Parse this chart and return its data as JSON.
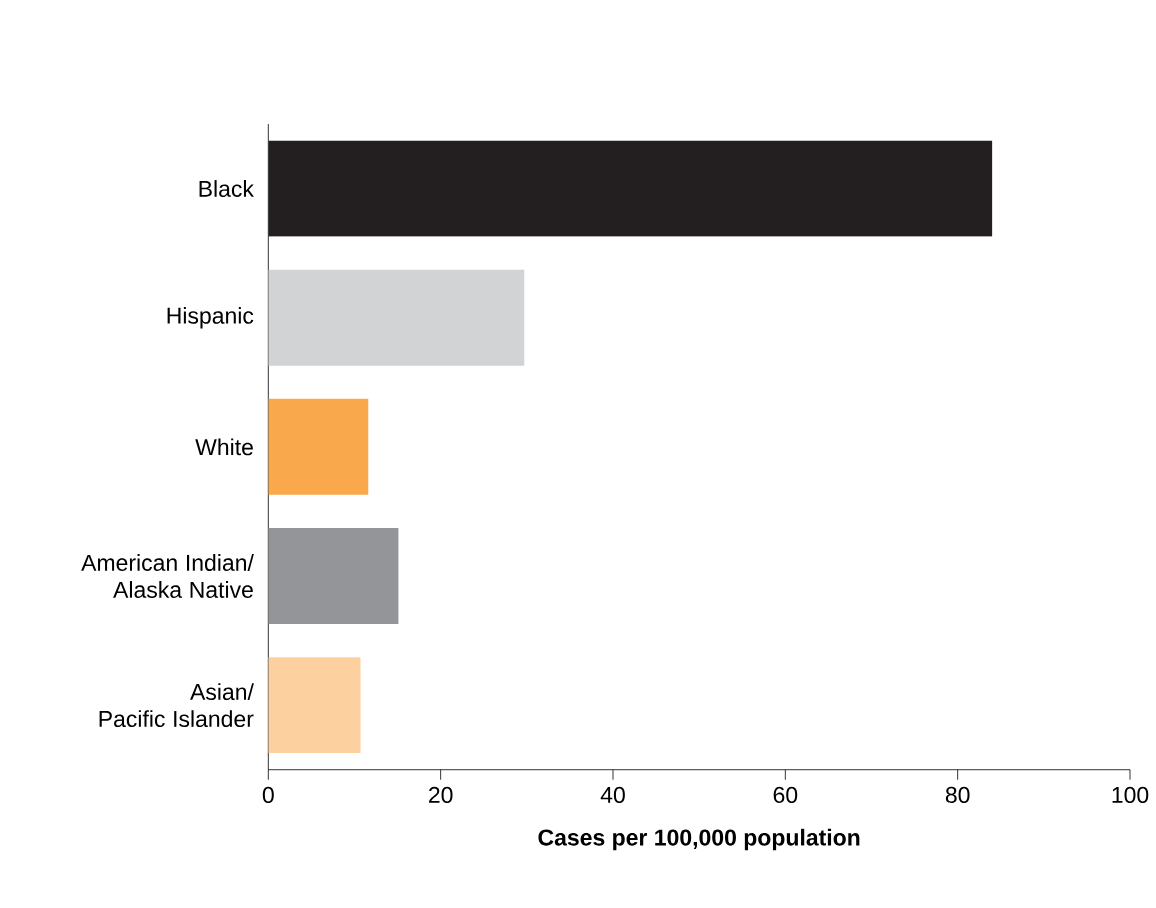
{
  "chart_data": {
    "type": "bar",
    "orientation": "horizontal",
    "xlabel": "Cases per 100,000 population",
    "categories": [
      "Black",
      "Hispanic",
      "White",
      "American Indian/ Alaska Native",
      "Asian/ Pacific Islander"
    ],
    "values": [
      84,
      29.7,
      11.6,
      15.1,
      10.7
    ],
    "colors": [
      "#231f20",
      "#d1d3d4",
      "#f9a94b",
      "#939598",
      "#fdd09f"
    ],
    "xlim": [
      0,
      100
    ],
    "xticks": [
      0,
      20,
      40,
      60,
      80,
      100
    ],
    "grid": false
  }
}
